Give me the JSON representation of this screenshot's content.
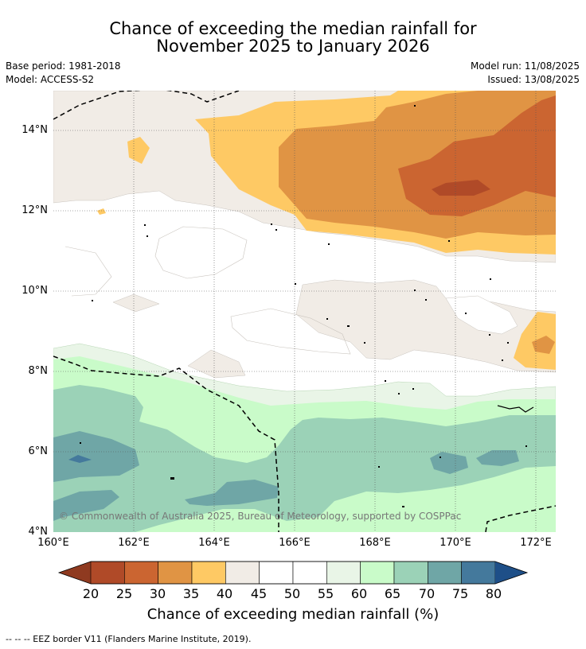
{
  "title": {
    "line1": "Chance of exceeding the median rainfall for",
    "line2": "November 2025 to January 2026"
  },
  "meta": {
    "base_period": "Base period: 1981-2018",
    "model": "Model: ACCESS-S2",
    "model_run": "Model run: 11/08/2025",
    "issued": "Issued: 13/08/2025"
  },
  "map": {
    "lon_range": [
      160,
      172.5
    ],
    "lat_range": [
      4,
      15
    ],
    "y_ticks": [
      "14°N",
      "12°N",
      "10°N",
      "8°N",
      "6°N",
      "4°N"
    ],
    "x_ticks": [
      "160°E",
      "162°E",
      "164°E",
      "166°E",
      "168°E",
      "170°E",
      "172°E"
    ],
    "copyright": "© Commonwealth of Australia 2025, Bureau of Meteorology, supported by COSPPac",
    "eez_border_style": "dashed black"
  },
  "colorbar": {
    "ticks": [
      "20",
      "25",
      "30",
      "35",
      "40",
      "45",
      "50",
      "55",
      "60",
      "65",
      "70",
      "75",
      "80"
    ],
    "colors": {
      "below20": "#8f3a20",
      "c20_25": "#b04a28",
      "c25_30": "#cb6531",
      "c30_35": "#e09444",
      "c35_40": "#fec964",
      "c40_45": "#f1ece6",
      "c45_50": "#ffffff",
      "c50_55": "#ffffff",
      "c55_60": "#e9f5e7",
      "c60_65": "#c9fbc9",
      "c65_70": "#9bd2b7",
      "c70_75": "#6fa6a6",
      "c75_80": "#44799c",
      "above80": "#1e4f88"
    },
    "label": "Chance of exceeding median rainfall (%)"
  },
  "footnote": "--  --  -- EEZ border V11 (Flanders Marine Institute, 2019)."
}
